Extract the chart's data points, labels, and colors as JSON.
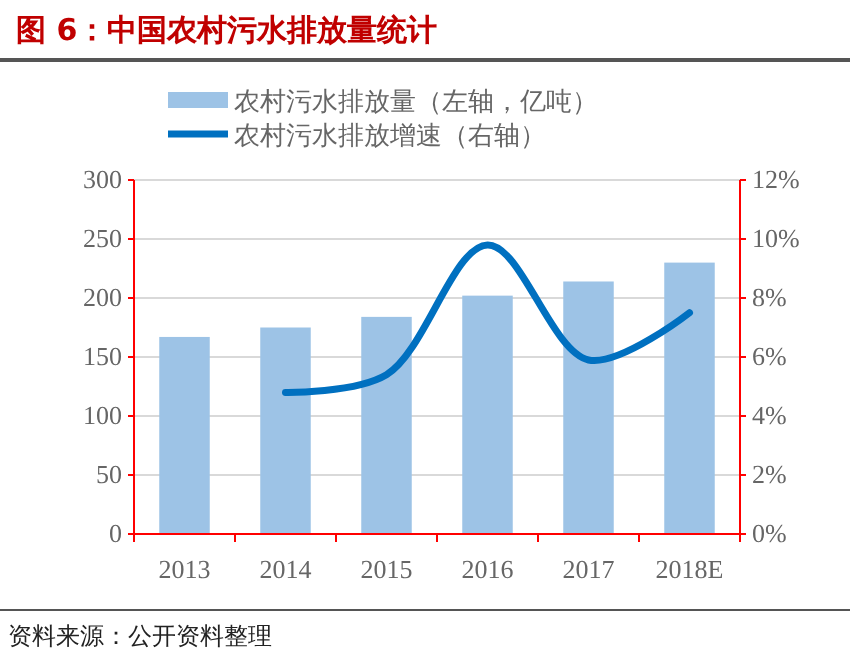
{
  "chart_data": {
    "type": "bar",
    "title": "图 6：中国农村污水排放量统计",
    "categories": [
      "2013",
      "2014",
      "2015",
      "2016",
      "2017",
      "2018E"
    ],
    "series": [
      {
        "name": "农村污水排放量（左轴，亿吨）",
        "color": "#9dc3e6",
        "values": [
          167,
          175,
          184,
          202,
          214,
          230
        ]
      },
      {
        "name": "农村污水排放增速（右轴）",
        "type": "line",
        "axis": "y2",
        "color": "#0070c0",
        "values": [
          null,
          4.8,
          5.4,
          9.8,
          5.9,
          7.5
        ]
      }
    ],
    "ylim": [
      0,
      300
    ],
    "yticks": [
      0,
      50,
      100,
      150,
      200,
      250,
      300
    ],
    "y2lim": [
      0,
      12
    ],
    "y2ticks": [
      {
        "value": 0,
        "label": "0%"
      },
      {
        "value": 2,
        "label": "2%"
      },
      {
        "value": 4,
        "label": "4%"
      },
      {
        "value": 6,
        "label": "6%"
      },
      {
        "value": 8,
        "label": "8%"
      },
      {
        "value": 10,
        "label": "10%"
      },
      {
        "value": 12,
        "label": "12%"
      }
    ],
    "grid": "y",
    "legend": "top",
    "line_style": "solid",
    "marker": "none",
    "annotations": [
      "资料来源：公开资料整理"
    ]
  }
}
